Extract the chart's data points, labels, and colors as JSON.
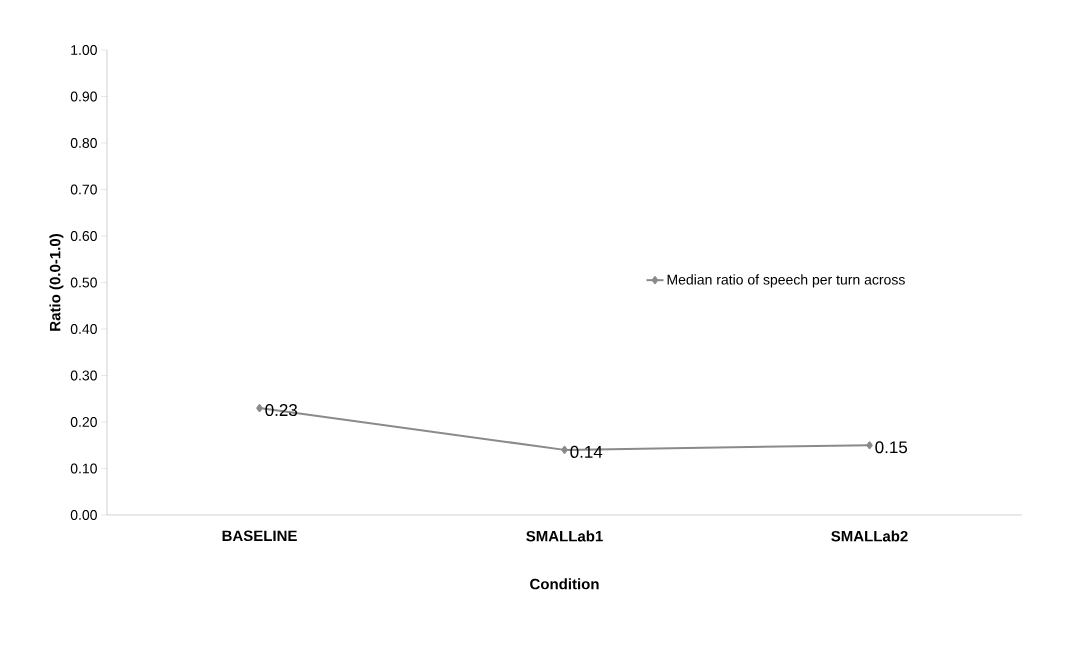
{
  "chart_data": {
    "type": "line",
    "xlabel": "Condition",
    "ylabel": "Ratio (0.0-1.0)",
    "categories": [
      "BASELINE",
      "SMALLab1",
      "SMALLab2"
    ],
    "series": [
      {
        "name": "Median ratio of speech per turn across",
        "color": "#8a8a8a",
        "values": [
          0.23,
          0.14,
          0.15
        ]
      }
    ],
    "ylim": [
      0,
      1
    ],
    "yticks": [
      {
        "value": 0,
        "label": "0.00"
      },
      {
        "value": 0.1,
        "label": "0.10"
      },
      {
        "value": 0.2,
        "label": "0.20"
      },
      {
        "value": 0.3,
        "label": "0.30"
      },
      {
        "value": 0.4,
        "label": "0.40"
      },
      {
        "value": 0.5,
        "label": "0.50"
      },
      {
        "value": 0.6,
        "label": "0.60"
      },
      {
        "value": 0.7,
        "label": "0.70"
      },
      {
        "value": 0.8,
        "label": "0.80"
      },
      {
        "value": 0.9,
        "label": "0.90"
      },
      {
        "value": 1,
        "label": "1.00"
      }
    ],
    "data_labels": true,
    "legend": "right",
    "marker": "diamond",
    "line_style": "solid",
    "grid": false
  }
}
